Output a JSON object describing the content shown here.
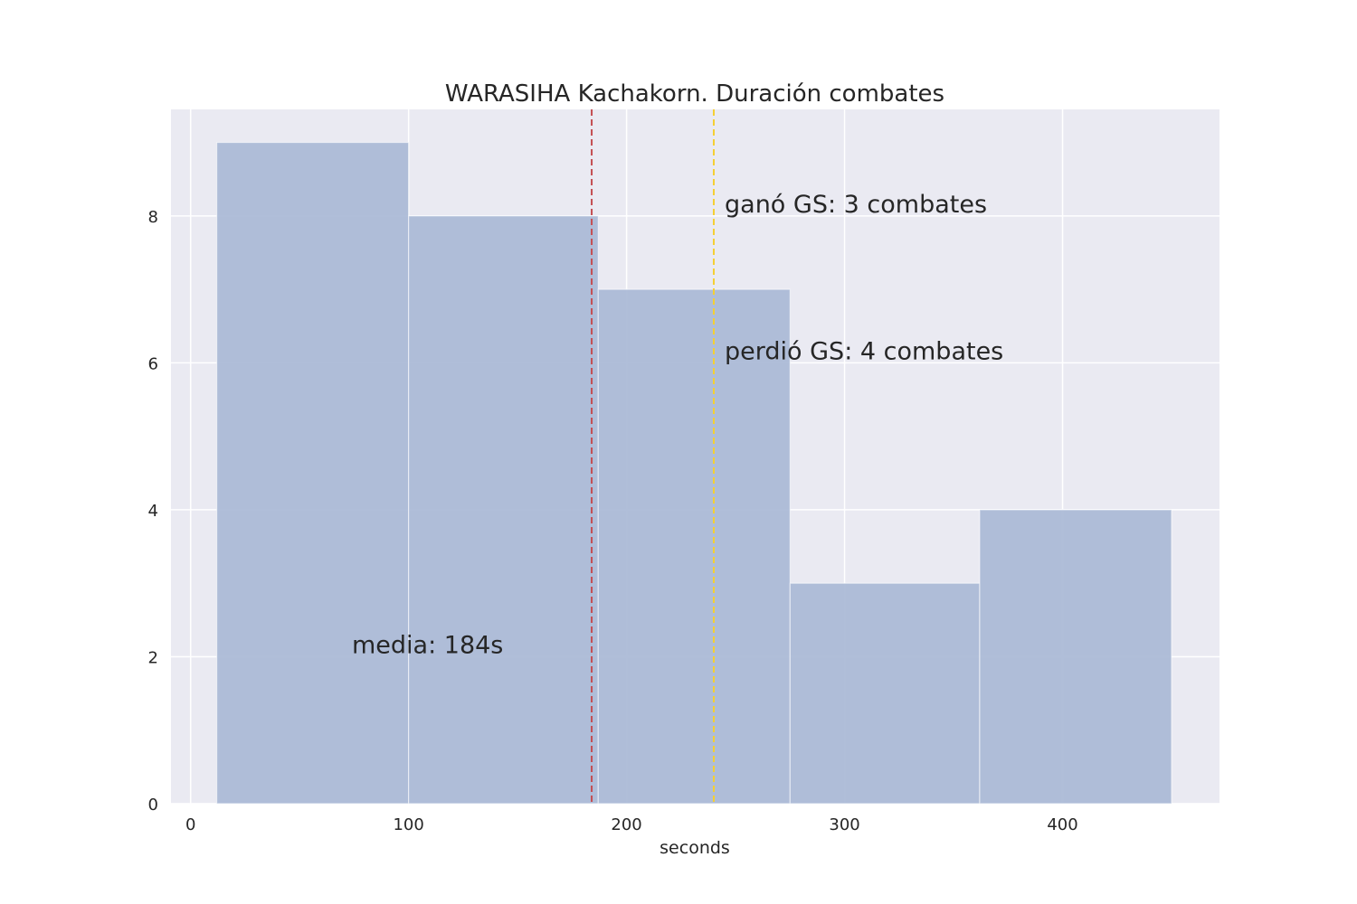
{
  "chart_data": {
    "type": "bar",
    "title": "WARASIHA Kachakorn. Duración combates",
    "xlabel": "seconds",
    "ylabel": "",
    "xlim": [
      -9,
      472
    ],
    "ylim": [
      0,
      9.45
    ],
    "xticks": [
      0,
      100,
      200,
      300,
      400
    ],
    "yticks": [
      0,
      2,
      4,
      6,
      8
    ],
    "grid": true,
    "bins": [
      {
        "start": 12,
        "end": 100,
        "count": 9
      },
      {
        "start": 100,
        "end": 187,
        "count": 8
      },
      {
        "start": 187,
        "end": 275,
        "count": 7
      },
      {
        "start": 275,
        "end": 362,
        "count": 3
      },
      {
        "start": 362,
        "end": 450,
        "count": 4
      }
    ],
    "lines": [
      {
        "x": 184,
        "color": "#c44e52",
        "style": "dashed"
      },
      {
        "x": 240,
        "color": "#f5d033",
        "style": "dashed"
      }
    ],
    "annotations": [
      {
        "text": "ganó GS: 3 combates",
        "x": 245,
        "y": 8.05,
        "color": "#262626"
      },
      {
        "text": "perdió GS: 4 combates",
        "x": 245,
        "y": 6.05,
        "color": "#262626"
      },
      {
        "text": "media: 184s",
        "x": 74,
        "y": 2.05,
        "color": "#c44e52"
      }
    ],
    "colors": {
      "bar": "#a9b9d6",
      "background": "#eaeaf2",
      "grid": "#ffffff"
    }
  }
}
